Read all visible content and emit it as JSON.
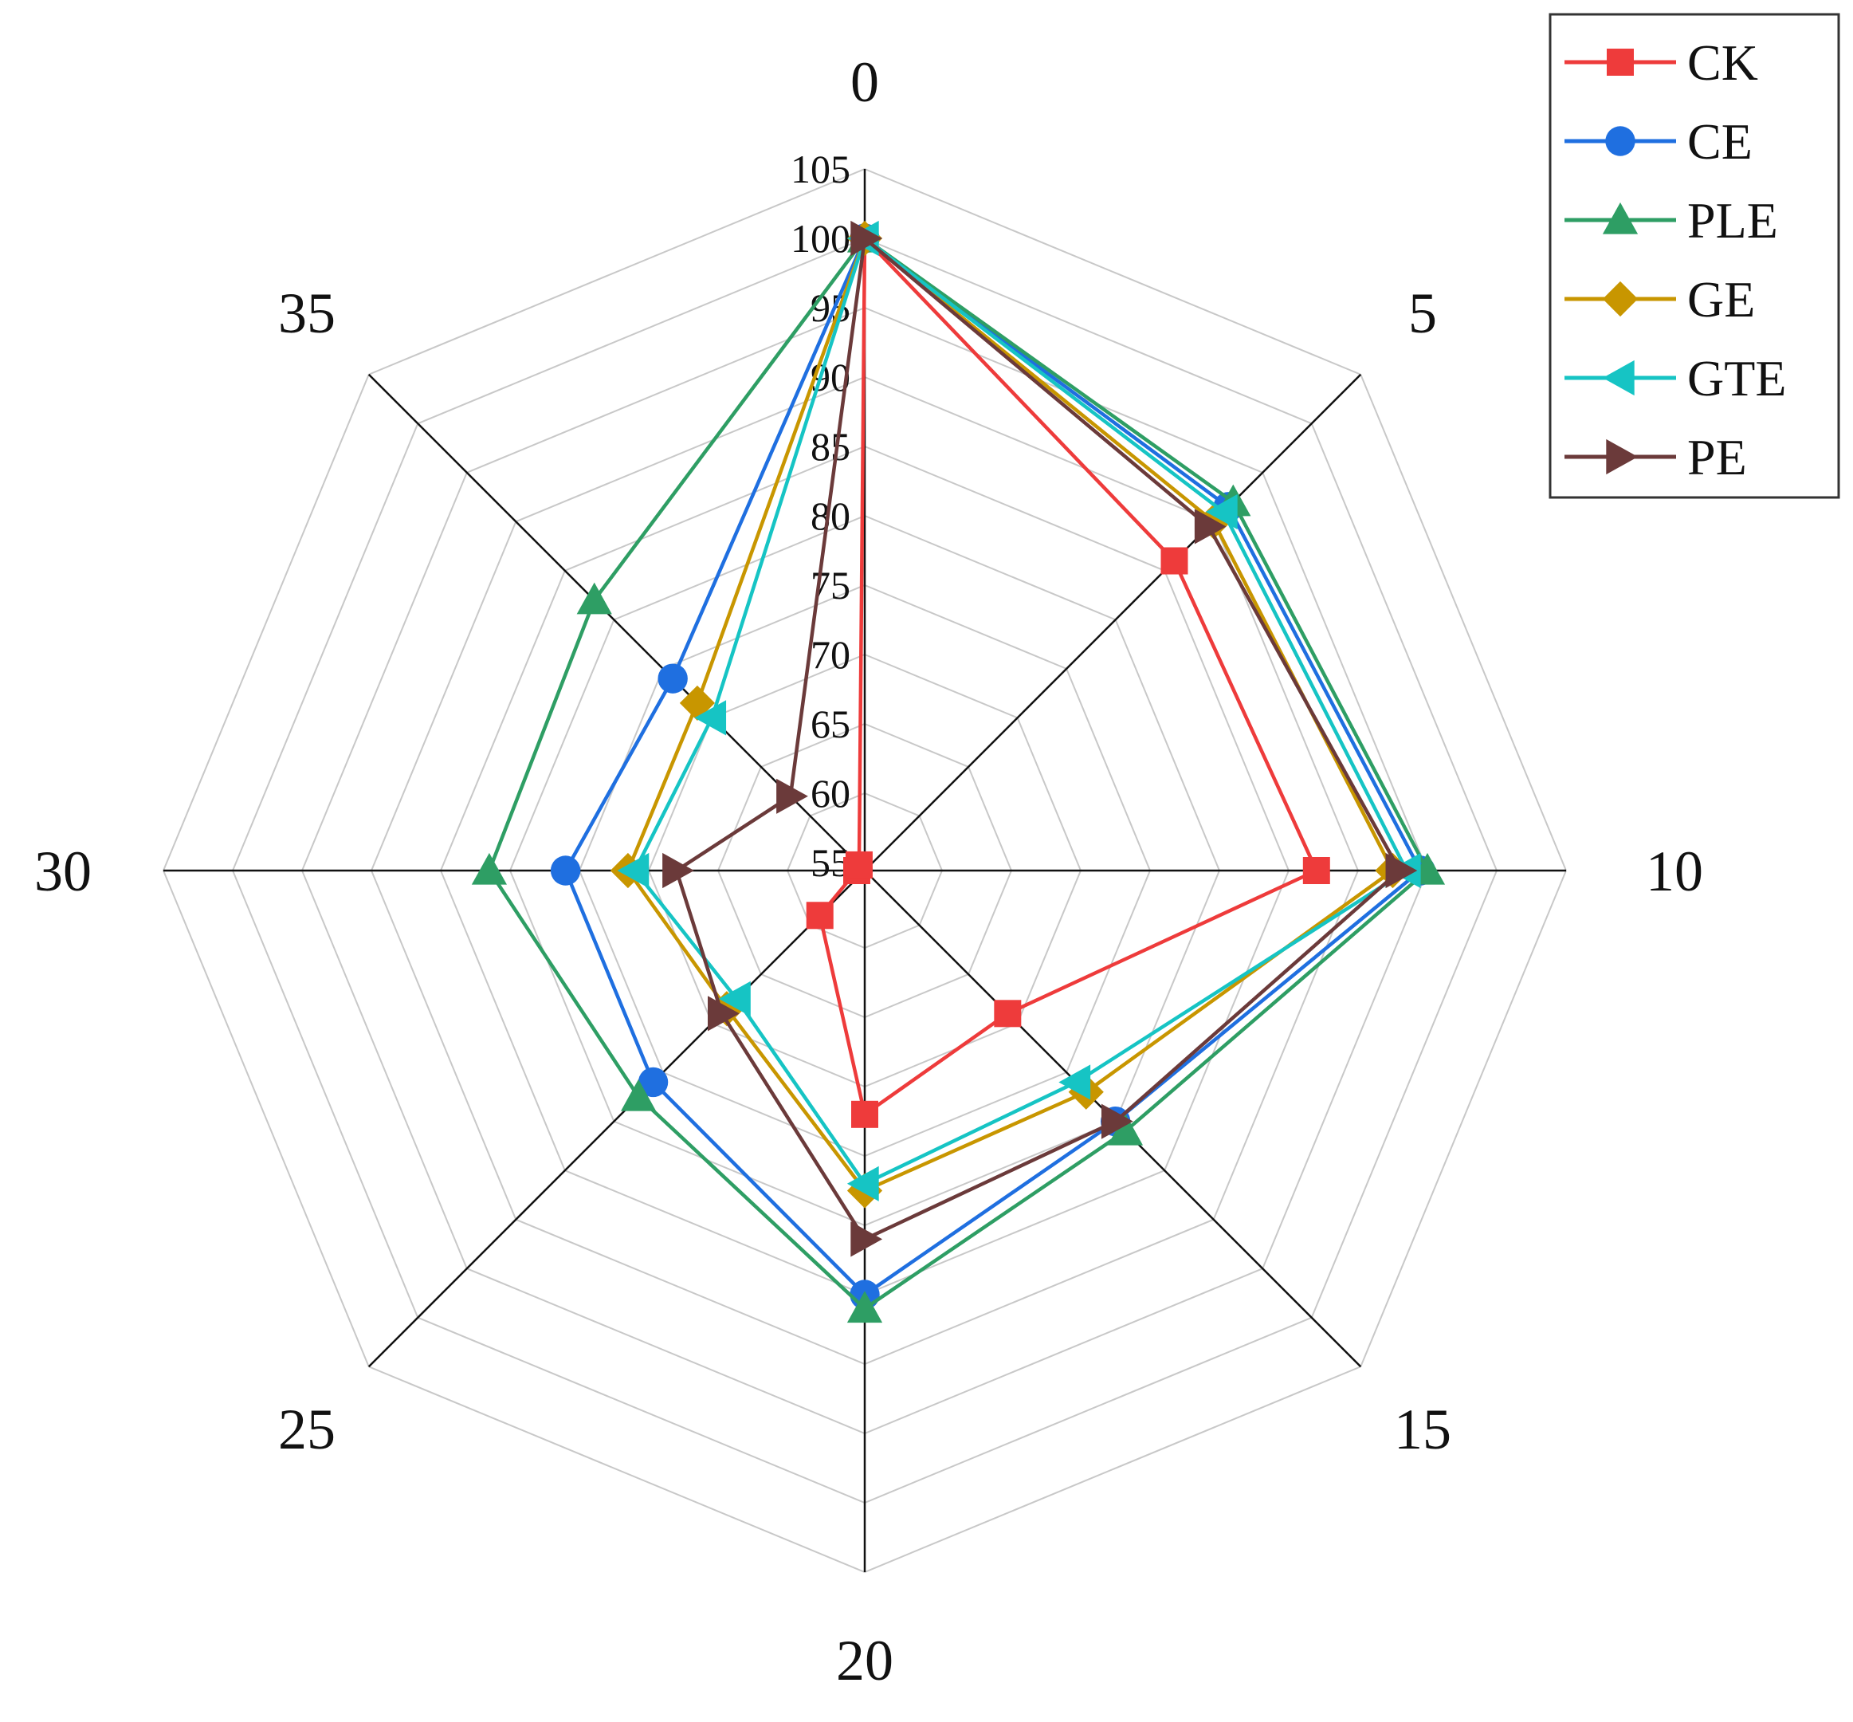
{
  "chart_data": {
    "type": "radar",
    "categories": [
      "0",
      "5",
      "10",
      "15",
      "20",
      "25",
      "30",
      "35"
    ],
    "rlim": [
      55,
      105
    ],
    "rticks": [
      55,
      60,
      65,
      70,
      75,
      80,
      85,
      90,
      95,
      100,
      105
    ],
    "grid": true,
    "legend_position": "top-right",
    "series": [
      {
        "name": "CK",
        "color": "#ee3b3b",
        "marker": "square",
        "values": [
          100,
          86.0,
          87.0,
          69.0,
          72.0,
          59.0,
          55,
          55
        ]
      },
      {
        "name": "CE",
        "color": "#1f6fe0",
        "marker": "circle",
        "values": [
          100,
          91.5,
          94.5,
          80.0,
          85.0,
          76.0,
          76.0,
          74.0
        ]
      },
      {
        "name": "PLE",
        "color": "#2e9e64",
        "marker": "triangle-up",
        "values": [
          100,
          92.0,
          95.0,
          81.0,
          86.0,
          77.5,
          81.5,
          82.0
        ]
      },
      {
        "name": "GE",
        "color": "#c89600",
        "marker": "diamond",
        "values": [
          100,
          90.0,
          92.5,
          77.0,
          77.5,
          68.5,
          71.5,
          71.5
        ]
      },
      {
        "name": "GTE",
        "color": "#16c4c4",
        "marker": "triangle-left",
        "values": [
          100,
          91.0,
          93.5,
          76.0,
          77.0,
          67.5,
          71.0,
          70.0
        ]
      },
      {
        "name": "PE",
        "color": "#6b3a3a",
        "marker": "triangle-right",
        "values": [
          100,
          89.5,
          93.0,
          80.0,
          81.0,
          69.0,
          68.0,
          62.0
        ]
      }
    ]
  }
}
